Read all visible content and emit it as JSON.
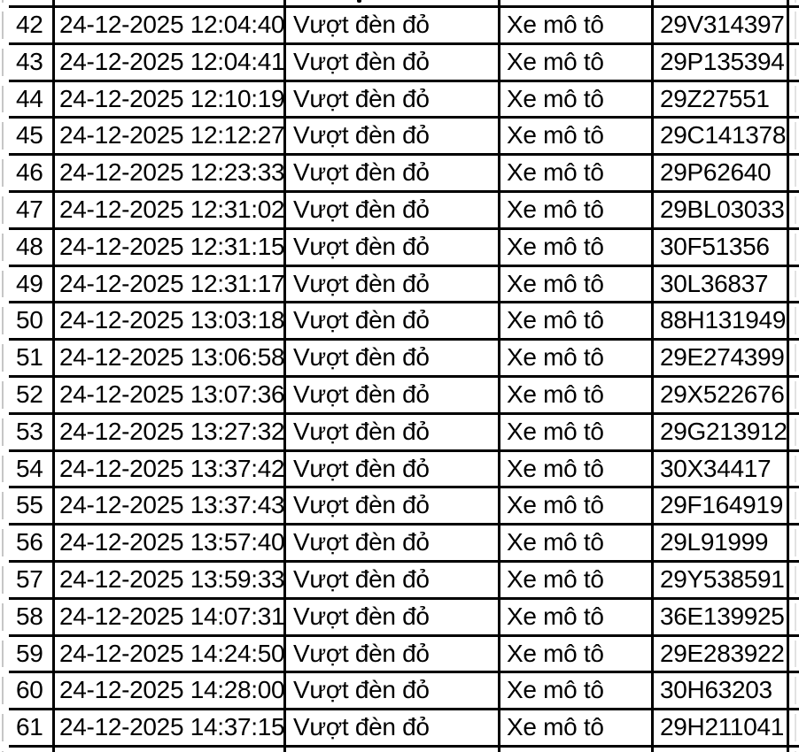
{
  "table": {
    "column_keys": [
      "stt",
      "datetime",
      "violation",
      "vehicle",
      "plate"
    ],
    "rows": [
      {
        "stt": "42",
        "datetime": "24-12-2025 12:04:40",
        "violation": "Vượt đèn đỏ",
        "vehicle": "Xe mô tô",
        "plate": "29V314397"
      },
      {
        "stt": "43",
        "datetime": "24-12-2025 12:04:41",
        "violation": "Vượt đèn đỏ",
        "vehicle": "Xe mô tô",
        "plate": "29P135394"
      },
      {
        "stt": "44",
        "datetime": "24-12-2025 12:10:19",
        "violation": "Vượt đèn đỏ",
        "vehicle": "Xe mô tô",
        "plate": "29Z27551"
      },
      {
        "stt": "45",
        "datetime": "24-12-2025 12:12:27",
        "violation": "Vượt đèn đỏ",
        "vehicle": "Xe mô tô",
        "plate": "29C141378"
      },
      {
        "stt": "46",
        "datetime": "24-12-2025 12:23:33",
        "violation": "Vượt đèn đỏ",
        "vehicle": "Xe mô tô",
        "plate": "29P62640"
      },
      {
        "stt": "47",
        "datetime": "24-12-2025 12:31:02",
        "violation": "Vượt đèn đỏ",
        "vehicle": "Xe mô tô",
        "plate": "29BL03033"
      },
      {
        "stt": "48",
        "datetime": "24-12-2025 12:31:15",
        "violation": "Vượt đèn đỏ",
        "vehicle": "Xe mô tô",
        "plate": "30F51356"
      },
      {
        "stt": "49",
        "datetime": "24-12-2025 12:31:17",
        "violation": "Vượt đèn đỏ",
        "vehicle": "Xe mô tô",
        "plate": "30L36837"
      },
      {
        "stt": "50",
        "datetime": "24-12-2025 13:03:18",
        "violation": "Vượt đèn đỏ",
        "vehicle": "Xe mô tô",
        "plate": "88H131949"
      },
      {
        "stt": "51",
        "datetime": "24-12-2025 13:06:58",
        "violation": "Vượt đèn đỏ",
        "vehicle": "Xe mô tô",
        "plate": "29E274399"
      },
      {
        "stt": "52",
        "datetime": "24-12-2025 13:07:36",
        "violation": "Vượt đèn đỏ",
        "vehicle": "Xe mô tô",
        "plate": "29X522676"
      },
      {
        "stt": "53",
        "datetime": "24-12-2025 13:27:32",
        "violation": "Vượt đèn đỏ",
        "vehicle": "Xe mô tô",
        "plate": "29G213912"
      },
      {
        "stt": "54",
        "datetime": "24-12-2025 13:37:42",
        "violation": "Vượt đèn đỏ",
        "vehicle": "Xe mô tô",
        "plate": "30X34417"
      },
      {
        "stt": "55",
        "datetime": "24-12-2025 13:37:43",
        "violation": "Vượt đèn đỏ",
        "vehicle": "Xe mô tô",
        "plate": "29F164919"
      },
      {
        "stt": "56",
        "datetime": "24-12-2025 13:57:40",
        "violation": "Vượt đèn đỏ",
        "vehicle": "Xe mô tô",
        "plate": "29L91999"
      },
      {
        "stt": "57",
        "datetime": "24-12-2025 13:59:33",
        "violation": "Vượt đèn đỏ",
        "vehicle": "Xe mô tô",
        "plate": "29Y538591"
      },
      {
        "stt": "58",
        "datetime": "24-12-2025 14:07:31",
        "violation": "Vượt đèn đỏ",
        "vehicle": "Xe mô tô",
        "plate": "36E139925"
      },
      {
        "stt": "59",
        "datetime": "24-12-2025 14:24:50",
        "violation": "Vượt đèn đỏ",
        "vehicle": "Xe mô tô",
        "plate": "29E283922"
      },
      {
        "stt": "60",
        "datetime": "24-12-2025 14:28:00",
        "violation": "Vượt đèn đỏ",
        "vehicle": "Xe mô tô",
        "plate": "30H63203"
      },
      {
        "stt": "61",
        "datetime": "24-12-2025 14:37:15",
        "violation": "Vượt đèn đỏ",
        "vehicle": "Xe mô tô",
        "plate": "29H211041"
      }
    ]
  },
  "colors": {
    "table_border": "#000000",
    "text": "#000000",
    "background": "#ffffff",
    "gridline_left": "#c6c6c6",
    "gridline_right": "#e2e2e2"
  }
}
